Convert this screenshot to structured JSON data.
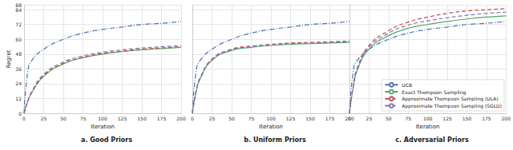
{
  "chart_data": [
    {
      "type": "line",
      "title": "a. Good Priors",
      "x_label": "Iteration",
      "y_label": "Regret",
      "x": [
        0,
        5,
        10,
        25,
        50,
        75,
        100,
        125,
        150,
        175,
        200
      ],
      "xlim": [
        0,
        200
      ],
      "xticks": [
        0,
        25,
        50,
        75,
        100,
        125,
        150,
        175,
        200
      ],
      "ylim": [
        0,
        88
      ],
      "yticks": [
        0,
        12,
        24,
        36,
        48,
        60,
        72,
        84
      ],
      "grid": true,
      "series": [
        {
          "name": "UCB",
          "color": "#4c72b0",
          "line_style": "dashdot",
          "values": [
            0,
            35,
            43,
            52,
            60,
            65,
            68,
            70,
            72,
            73,
            74.5
          ]
        },
        {
          "name": "Exact Thompson Sampling",
          "color": "#55a868",
          "line_style": "solid",
          "values": [
            0,
            10,
            17,
            30,
            40,
            45,
            48,
            50,
            51.5,
            52.5,
            53.5
          ]
        },
        {
          "name": "Approximate Thompson Sampling (ULA)",
          "color": "#c44e52",
          "line_style": "dashed",
          "values": [
            0,
            10,
            17,
            30.5,
            40.5,
            45.5,
            48.5,
            50.5,
            52,
            53,
            54
          ]
        },
        {
          "name": "Approximate Thompson Sampling (SGLD)",
          "color": "#8172b2",
          "line_style": "dashed",
          "values": [
            0,
            10.5,
            18,
            31.5,
            41.5,
            46.5,
            49.5,
            51.5,
            53,
            54,
            55
          ]
        }
      ]
    },
    {
      "type": "line",
      "title": "b. Uniform Priors",
      "x_label": "Iteration",
      "tick_labels": "x",
      "x": [
        0,
        5,
        10,
        25,
        50,
        75,
        100,
        125,
        150,
        175,
        200
      ],
      "xlim": [
        0,
        200
      ],
      "xticks": [
        0,
        25,
        50,
        75,
        100,
        125,
        150,
        175,
        200
      ],
      "ylim": [
        0,
        88
      ],
      "yticks": [
        0,
        12,
        24,
        36,
        48,
        60,
        72,
        84
      ],
      "grid": true,
      "series": [
        {
          "name": "UCB",
          "color": "#4c72b0",
          "line_style": "dashdot",
          "values": [
            0,
            35,
            43,
            52,
            60,
            65,
            68,
            70,
            72,
            73,
            74.5
          ]
        },
        {
          "name": "Exact Thompson Sampling",
          "color": "#55a868",
          "line_style": "solid",
          "values": [
            0,
            18,
            28,
            43,
            51,
            53.5,
            55,
            56,
            56.5,
            57,
            57.5
          ]
        },
        {
          "name": "Approximate Thompson Sampling (ULA)",
          "color": "#c44e52",
          "line_style": "dashed",
          "values": [
            0,
            18.5,
            29,
            44,
            52,
            54.5,
            56,
            57,
            57.5,
            58,
            58.5
          ]
        },
        {
          "name": "Approximate Thompson Sampling (SGLD)",
          "color": "#8172b2",
          "line_style": "dashed",
          "values": [
            0,
            18,
            28.5,
            43.5,
            51.5,
            54,
            55.5,
            56.5,
            57,
            57.5,
            58
          ]
        }
      ]
    },
    {
      "type": "line",
      "title": "c. Adversarial Priors",
      "x_label": "Iteration",
      "tick_labels": "x",
      "legend": "lower right",
      "x": [
        0,
        5,
        10,
        25,
        50,
        75,
        100,
        125,
        150,
        175,
        200
      ],
      "xlim": [
        0,
        200
      ],
      "xticks": [
        0,
        25,
        50,
        75,
        100,
        125,
        150,
        175,
        200
      ],
      "ylim": [
        0,
        88
      ],
      "yticks": [
        0,
        12,
        24,
        36,
        48,
        60,
        72,
        84
      ],
      "grid": true,
      "series": [
        {
          "name": "UCB",
          "color": "#4c72b0",
          "line_style": "dashdot",
          "values": [
            0,
            35,
            43,
            52,
            60,
            65,
            68,
            70,
            72,
            73,
            74.5
          ]
        },
        {
          "name": "Exact Thompson Sampling",
          "color": "#55a868",
          "line_style": "solid",
          "values": [
            0,
            22,
            35,
            52,
            63,
            69,
            72,
            74.5,
            76.5,
            78,
            79
          ]
        },
        {
          "name": "Approximate Thompson Sampling (ULA)",
          "color": "#c44e52",
          "line_style": "dashed",
          "values": [
            0,
            23,
            37,
            55,
            67,
            74,
            78,
            81,
            83,
            84,
            85
          ]
        },
        {
          "name": "Approximate Thompson Sampling (SGLD)",
          "color": "#8172b2",
          "line_style": "dashed",
          "values": [
            0,
            22.5,
            36,
            53.5,
            65,
            71.5,
            75,
            77.5,
            79.5,
            81,
            82
          ]
        }
      ]
    }
  ]
}
